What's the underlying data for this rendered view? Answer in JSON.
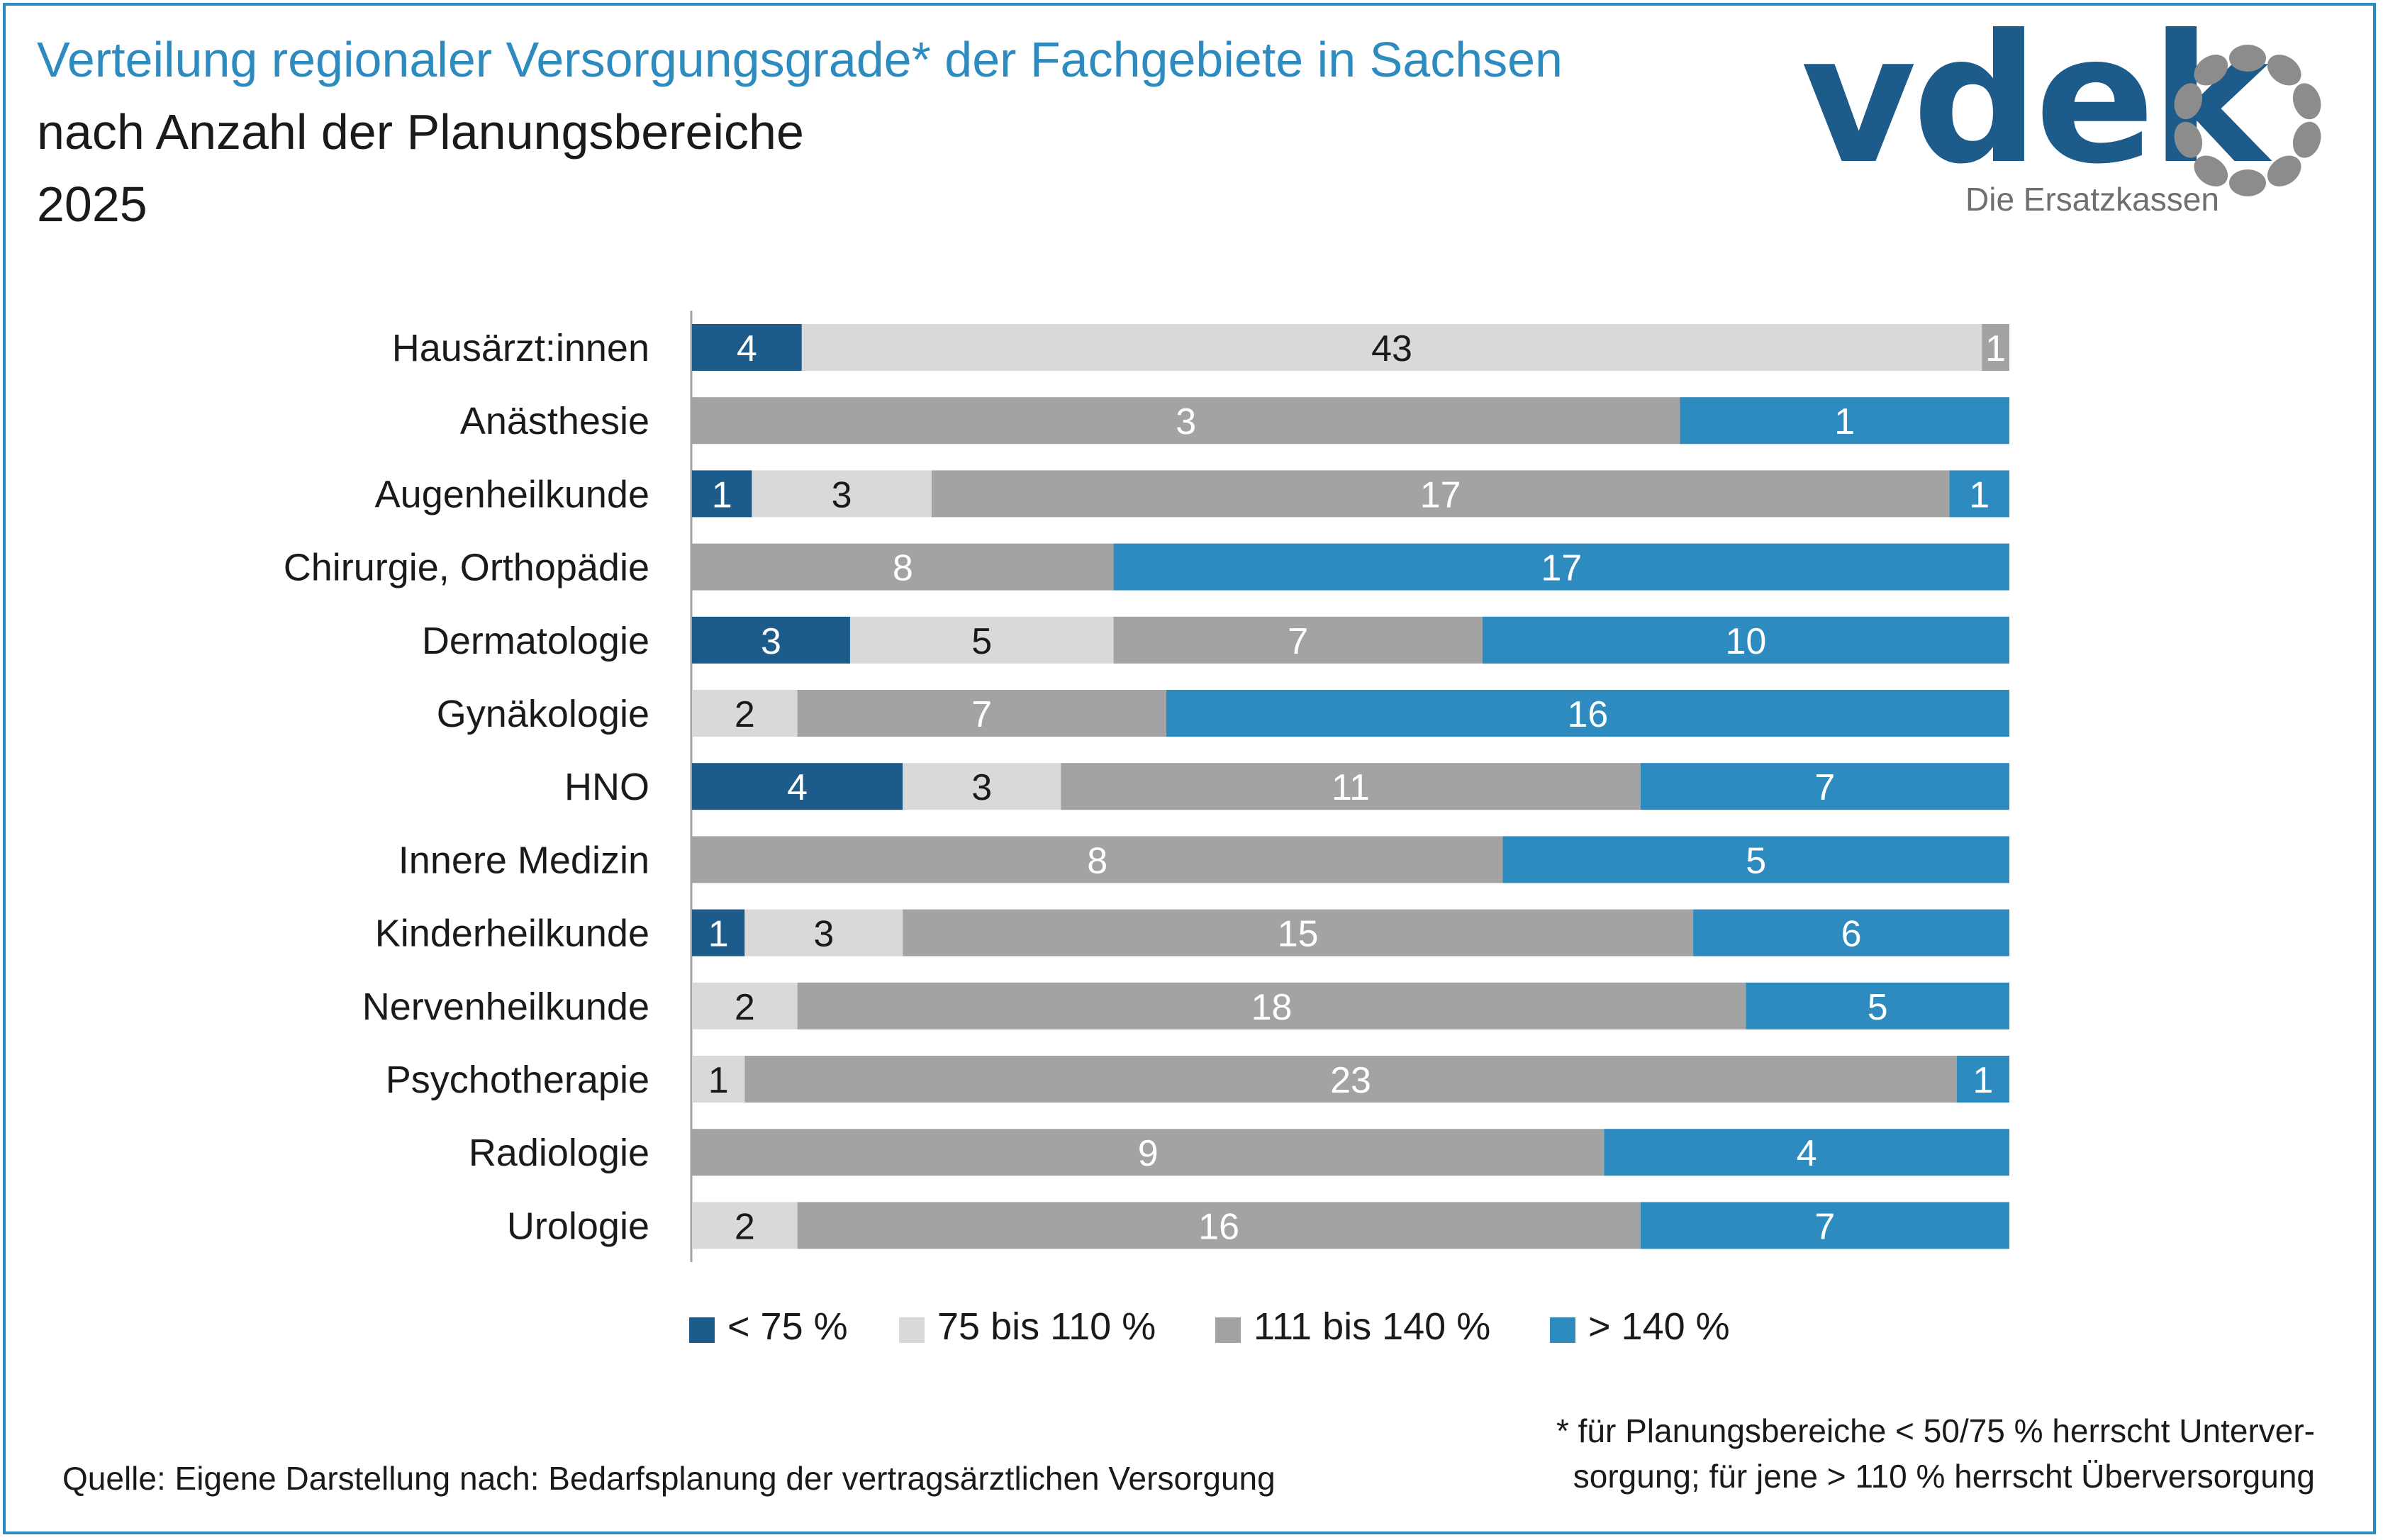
{
  "title": "Verteilung regionaler Versorgungsgrade* der Fachgebiete in Sachsen",
  "subtitle": "nach Anzahl der Planungsbereiche",
  "year": "2025",
  "logo": {
    "word": "vdek",
    "tagline": "Die Ersatzkassen"
  },
  "source": "Quelle: Eigene Darstellung nach: Bedarfsplanung der vertragsärztlichen Versorgung",
  "footnote": {
    "line1": "* für Planungsbereiche < 50/75 % herrscht Unterver-",
    "line2": "sorgung; für jene > 110 % herrscht Überversorgung"
  },
  "colors": {
    "lt75": "#1d5b8a",
    "75to110": "#d9d9d9",
    "111to140": "#a3a3a3",
    "gt140": "#2e8bbf",
    "title": "#2e8bbf"
  },
  "chart_data": {
    "type": "bar",
    "orientation": "horizontal",
    "stacked": "100%",
    "categories": [
      "Hausärzt:innen",
      "Anästhesie",
      "Augenheilkunde",
      "Chirurgie, Orthopädie",
      "Dermatologie",
      "Gynäkologie",
      "HNO",
      "Innere Medizin",
      "Kinderheilkunde",
      "Nervenheilkunde",
      "Psychotherapie",
      "Radiologie",
      "Urologie"
    ],
    "series": [
      {
        "name": "< 75 %",
        "color": "#1d5b8a",
        "label_color": "#ffffff",
        "values": [
          4,
          0,
          1,
          0,
          3,
          0,
          4,
          0,
          1,
          0,
          0,
          0,
          0
        ]
      },
      {
        "name": "75 bis 110 %",
        "color": "#d9d9d9",
        "label_color": "#1a1a1a",
        "values": [
          43,
          0,
          3,
          0,
          5,
          2,
          3,
          0,
          3,
          2,
          1,
          0,
          2
        ]
      },
      {
        "name": "111 bis 140 %",
        "color": "#a3a3a3",
        "label_color": "#ffffff",
        "values": [
          1,
          3,
          17,
          8,
          7,
          7,
          11,
          8,
          15,
          18,
          23,
          9,
          16
        ]
      },
      {
        "name": "> 140 %",
        "color": "#2e8bbf",
        "label_color": "#ffffff",
        "values": [
          0,
          1,
          1,
          17,
          10,
          16,
          7,
          5,
          6,
          5,
          1,
          4,
          7
        ]
      }
    ],
    "legend_position": "bottom",
    "grid": false
  }
}
